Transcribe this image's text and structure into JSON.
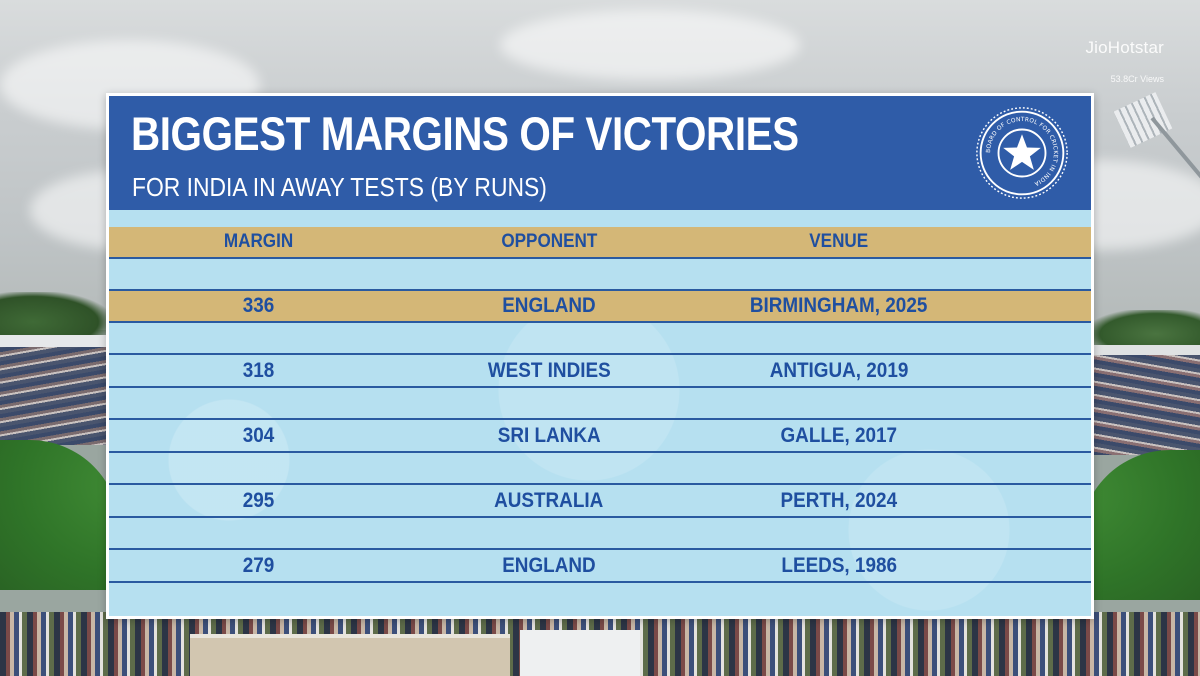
{
  "broadcaster": {
    "logo_text": "JioHotstar",
    "views": "53.8Cr Views"
  },
  "graphic": {
    "title": "BIGGEST MARGINS OF VICTORIES",
    "subtitle": "FOR INDIA IN AWAY TESTS (BY RUNS)",
    "logo_icon": "bcci-crest-icon",
    "logo_ring_text": "BOARD OF CONTROL FOR CRICKET IN INDIA",
    "table": {
      "headers": [
        "MARGIN",
        "OPPONENT",
        "VENUE"
      ],
      "rows": [
        {
          "margin": "336",
          "opponent": "ENGLAND",
          "venue": "BIRMINGHAM, 2025",
          "highlighted": true
        },
        {
          "margin": "318",
          "opponent": "WEST INDIES",
          "venue": "ANTIGUA, 2019",
          "highlighted": false
        },
        {
          "margin": "304",
          "opponent": "SRI LANKA",
          "venue": "GALLE, 2017",
          "highlighted": false
        },
        {
          "margin": "295",
          "opponent": "AUSTRALIA",
          "venue": "PERTH, 2024",
          "highlighted": false
        },
        {
          "margin": "279",
          "opponent": "ENGLAND",
          "venue": "LEEDS, 1986",
          "highlighted": false
        }
      ]
    },
    "colors": {
      "header_blue": "#2f5ca8",
      "table_bg": "#b6e0f0",
      "highlight_gold": "#d4b777",
      "text_blue": "#1f4fa0"
    }
  }
}
